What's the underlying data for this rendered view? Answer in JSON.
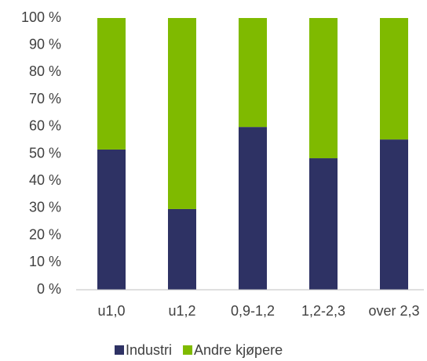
{
  "chart_data": {
    "type": "stacked_bar",
    "categories": [
      "u1,0",
      "u1,2",
      "0,9-1,2",
      "1,2-2,3",
      "over 2,3"
    ],
    "series": [
      {
        "name": "Industri",
        "color": "#2e3264",
        "values": [
          51.6,
          29.7,
          59.9,
          48.4,
          55.3
        ]
      },
      {
        "name": "Andre kjøpere",
        "color": "#7fba00",
        "values": [
          48.4,
          70.3,
          40.1,
          51.6,
          44.7
        ]
      }
    ],
    "ylim": [
      0,
      100
    ],
    "yticks": [
      {
        "value": 0,
        "label": "0 %"
      },
      {
        "value": 10,
        "label": "10 %"
      },
      {
        "value": 20,
        "label": "20 %"
      },
      {
        "value": 30,
        "label": "30 %"
      },
      {
        "value": 40,
        "label": "40 %"
      },
      {
        "value": 50,
        "label": "50 %"
      },
      {
        "value": 60,
        "label": "60 %"
      },
      {
        "value": 70,
        "label": "70 %"
      },
      {
        "value": 80,
        "label": "80 %"
      },
      {
        "value": 90,
        "label": "90 %"
      },
      {
        "value": 100,
        "label": "100 %"
      }
    ],
    "grid": false,
    "legend": "bottom"
  }
}
